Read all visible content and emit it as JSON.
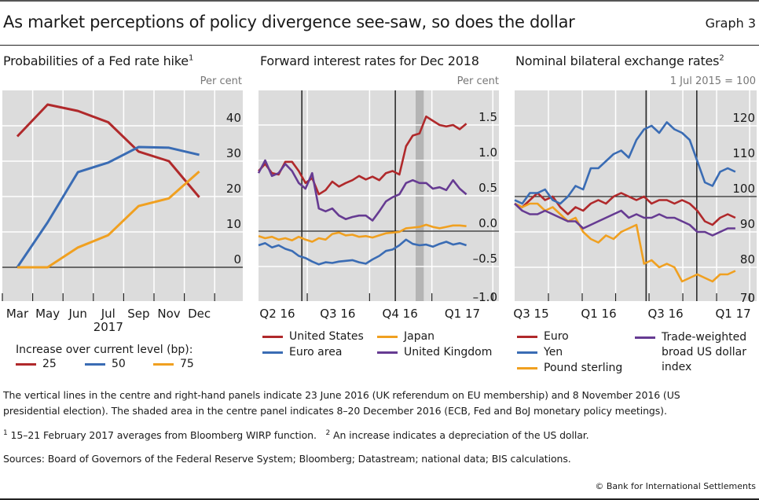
{
  "header": {
    "title": "As market perceptions of policy divergence see-saw, so does the dollar",
    "graph_number": "Graph 3"
  },
  "colors": {
    "red": "#B0292B",
    "blue": "#3A6CB4",
    "orange": "#F0A020",
    "purple": "#663B92",
    "panel_bg": "#DCDCDC",
    "shade": "#B4B4B4"
  },
  "chart_data": [
    {
      "id": "left",
      "type": "line",
      "title": "Probabilities of a Fed rate hike",
      "title_footnote": "1",
      "unit_label": "Per cent",
      "categories": [
        "Mar",
        "May",
        "Jun",
        "Jul",
        "Sep",
        "Nov",
        "Dec"
      ],
      "x_sublabel": "2017",
      "ylim": [
        -10,
        50
      ],
      "yticks": [
        0,
        10,
        20,
        30,
        40
      ],
      "ytick_labels": [
        "0",
        "10",
        "20",
        "30",
        "40"
      ],
      "grid": true,
      "legend_title": "Increase over current level (bp):",
      "legend_position": "bottom",
      "series": [
        {
          "name": "25",
          "color": "#B0292B",
          "values": [
            37,
            46,
            44.2,
            41,
            32.7,
            30,
            19.8
          ]
        },
        {
          "name": "50",
          "color": "#3A6CB4",
          "values": [
            0,
            12.7,
            26.9,
            29.6,
            34,
            33.8,
            31.8
          ]
        },
        {
          "name": "75",
          "color": "#F0A020",
          "values": [
            0,
            0,
            5.6,
            9.1,
            17.3,
            19.5,
            27.1
          ]
        }
      ]
    },
    {
      "id": "middle",
      "type": "line",
      "title": "Forward interest rates for Dec 2018",
      "unit_label": "Per cent",
      "x_tick_labels": [
        "Q2 16",
        "Q3 16",
        "Q4 16",
        "Q1 17"
      ],
      "x_range": [
        "2016-04-20",
        "2017-04-10"
      ],
      "x_series_range": [
        "2016-04-20",
        "2017-02-21"
      ],
      "ylim": [
        -1.0,
        2.0
      ],
      "yticks": [
        -1.0,
        -0.5,
        0.0,
        0.5,
        1.0,
        1.5
      ],
      "ytick_labels": [
        "–1.0",
        "–0.5",
        "0.0",
        "0.5",
        "1.0",
        "1.5"
      ],
      "zero_line": 0.0,
      "event_lines": [
        "2016-06-23",
        "2016-11-08"
      ],
      "shaded_range": [
        "2016-12-08",
        "2016-12-20"
      ],
      "grid": true,
      "legend_position": "bottom",
      "series": [
        {
          "name": "United States",
          "color": "#B0292B",
          "values": [
            0.85,
            0.95,
            0.82,
            0.8,
            0.98,
            0.98,
            0.85,
            0.68,
            0.75,
            0.52,
            0.58,
            0.7,
            0.63,
            0.68,
            0.72,
            0.78,
            0.73,
            0.77,
            0.72,
            0.82,
            0.85,
            0.8,
            1.2,
            1.35,
            1.38,
            1.62,
            1.56,
            1.5,
            1.48,
            1.5,
            1.44,
            1.52
          ]
        },
        {
          "name": "Euro area",
          "color": "#3A6CB4",
          "values": [
            -0.2,
            -0.17,
            -0.23,
            -0.2,
            -0.25,
            -0.28,
            -0.35,
            -0.38,
            -0.43,
            -0.47,
            -0.44,
            -0.45,
            -0.43,
            -0.42,
            -0.41,
            -0.44,
            -0.46,
            -0.4,
            -0.35,
            -0.28,
            -0.26,
            -0.2,
            -0.12,
            -0.18,
            -0.2,
            -0.19,
            -0.22,
            -0.18,
            -0.15,
            -0.19,
            -0.17,
            -0.2
          ]
        },
        {
          "name": "Japan",
          "color": "#F0A020",
          "values": [
            -0.07,
            -0.1,
            -0.08,
            -0.12,
            -0.1,
            -0.13,
            -0.08,
            -0.12,
            -0.15,
            -0.1,
            -0.12,
            -0.04,
            -0.02,
            -0.06,
            -0.05,
            -0.08,
            -0.07,
            -0.09,
            -0.06,
            -0.03,
            -0.02,
            -0.01,
            0.04,
            0.05,
            0.06,
            0.09,
            0.06,
            0.04,
            0.06,
            0.08,
            0.08,
            0.07
          ]
        },
        {
          "name": "United Kingdom",
          "color": "#663B92",
          "values": [
            0.82,
            1.0,
            0.78,
            0.82,
            0.95,
            0.85,
            0.68,
            0.6,
            0.82,
            0.32,
            0.28,
            0.32,
            0.22,
            0.17,
            0.2,
            0.22,
            0.22,
            0.15,
            0.28,
            0.42,
            0.48,
            0.52,
            0.68,
            0.72,
            0.68,
            0.68,
            0.6,
            0.62,
            0.58,
            0.72,
            0.6,
            0.52
          ]
        }
      ]
    },
    {
      "id": "right",
      "type": "line",
      "title": "Nominal bilateral exchange rates",
      "title_footnote": "2",
      "unit_label": "1 Jul 2015 = 100",
      "x_tick_labels": [
        "Q3 15",
        "Q1 16",
        "Q3 16",
        "Q1 17"
      ],
      "x_range": [
        "2015-07-01",
        "2017-04-20"
      ],
      "x_series_range": [
        "2015-07-01",
        "2017-02-21"
      ],
      "ylim": [
        70,
        125
      ],
      "yticks": [
        70,
        80,
        90,
        100,
        110,
        120
      ],
      "ytick_labels": [
        "70",
        "80",
        "90",
        "100",
        "110",
        "120"
      ],
      "base_line": 100,
      "event_lines": [
        "2016-06-23",
        "2016-11-08"
      ],
      "grid": true,
      "legend_position": "bottom",
      "series": [
        {
          "name": "Euro",
          "color": "#B0292B",
          "values": [
            98,
            97,
            99,
            101,
            99,
            100,
            97,
            95,
            97,
            96,
            98,
            99,
            98,
            100,
            101,
            100,
            99,
            100,
            98,
            99,
            99,
            98,
            99,
            98,
            96,
            93,
            92,
            94,
            95,
            94
          ]
        },
        {
          "name": "Yen",
          "color": "#3A6CB4",
          "values": [
            99,
            98,
            101,
            101,
            102,
            99,
            98,
            100,
            103,
            102,
            108,
            108,
            110,
            112,
            113,
            111,
            116,
            119,
            120,
            118,
            121,
            119,
            118,
            116,
            110,
            104,
            103,
            107,
            108,
            107
          ]
        },
        {
          "name": "Pound sterling",
          "color": "#F0A020",
          "values": [
            98,
            97,
            98,
            98,
            96,
            97,
            95,
            93,
            94,
            90,
            88,
            87,
            89,
            88,
            90,
            91,
            92,
            81,
            82,
            80,
            81,
            80,
            76,
            77,
            78,
            77,
            76,
            78,
            78,
            79
          ]
        },
        {
          "name": "Trade-weighted broad US dollar index",
          "color": "#663B92",
          "values": [
            98,
            96,
            95,
            95,
            96,
            95,
            94,
            93,
            93,
            91,
            92,
            93,
            94,
            95,
            96,
            94,
            95,
            94,
            94,
            95,
            94,
            94,
            93,
            92,
            90,
            90,
            89,
            90,
            91,
            91
          ]
        }
      ]
    }
  ],
  "notes": {
    "line1": "The vertical lines in the centre and right-hand panels indicate 23 June 2016 (UK referendum on EU membership) and 8 November 2016 (US",
    "line2": "presidential election). The shaded area in the centre panel indicates 8–20 December 2016 (ECB, Fed and BoJ monetary policy meetings).",
    "footnote1_mark": "1",
    "footnote1": "15–21 February 2017 averages from Bloomberg WIRP function.",
    "footnote2_mark": "2",
    "footnote2": "An increase indicates a depreciation of the US dollar.",
    "sources": "Sources: Board of Governors of the Federal Reserve System; Bloomberg; Datastream; national data; BIS calculations.",
    "copyright": "© Bank for International Settlements"
  }
}
